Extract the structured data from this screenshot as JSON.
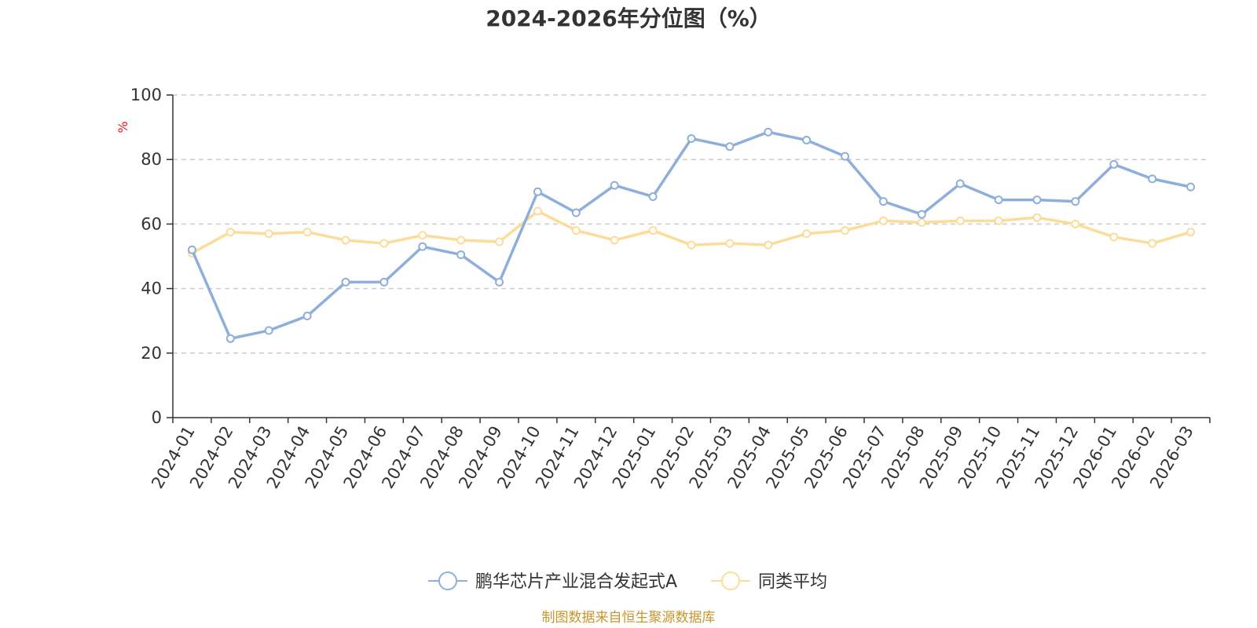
{
  "chart_data": {
    "type": "line",
    "title": "2024-2026年分位图（%）",
    "ylabel": "%",
    "xlabel": "",
    "ylim": [
      0,
      100
    ],
    "yticks": [
      0,
      20,
      40,
      60,
      80,
      100
    ],
    "grid": true,
    "legend_position": "bottom",
    "categories": [
      "2024-01",
      "2024-02",
      "2024-03",
      "2024-04",
      "2024-05",
      "2024-06",
      "2024-07",
      "2024-08",
      "2024-09",
      "2024-10",
      "2024-11",
      "2024-12",
      "2025-01",
      "2025-02",
      "2025-03",
      "2025-04",
      "2025-05",
      "2025-06",
      "2025-07",
      "2025-08",
      "2025-09",
      "2025-10",
      "2025-11",
      "2025-12",
      "2026-01",
      "2026-02",
      "2026-03"
    ],
    "series": [
      {
        "name": "鹏华芯片产业混合发起式A",
        "color": "#8eaedb",
        "values": [
          52,
          24.5,
          27,
          31.5,
          42,
          42,
          53,
          50.5,
          42,
          70,
          63.5,
          72,
          68.5,
          86.5,
          84,
          88.5,
          86,
          81,
          67,
          63,
          72.5,
          67.5,
          67.5,
          67,
          78.5,
          74,
          71.5
        ]
      },
      {
        "name": "同类平均",
        "color": "#fddc99",
        "values": [
          51,
          57.5,
          57,
          57.5,
          55,
          54,
          56.5,
          55,
          54.5,
          64,
          58,
          55,
          58,
          53.5,
          54,
          53.5,
          57,
          58,
          61,
          60.5,
          61,
          61,
          62,
          60,
          56,
          54,
          57.5
        ]
      }
    ],
    "source": "制图数据来自恒生聚源数据库"
  }
}
